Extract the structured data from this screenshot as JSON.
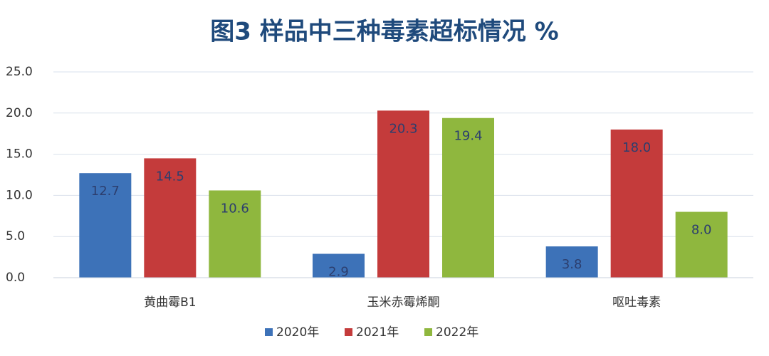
{
  "chart_data": {
    "type": "bar",
    "title": "图3 样品中三种毒素超标情况 %",
    "categories": [
      "黄曲霉B1",
      "玉米赤霉烯酮",
      "呕吐毒素"
    ],
    "series": [
      {
        "name": "2020年",
        "color": "#3d72b8",
        "values": [
          12.7,
          2.9,
          3.8
        ],
        "value_labels": [
          "12.7",
          "2.9",
          "3.8"
        ]
      },
      {
        "name": "2021年",
        "color": "#c43b3b",
        "values": [
          14.5,
          20.3,
          18.0
        ],
        "value_labels": [
          "14.5",
          "20.3",
          "18.0"
        ]
      },
      {
        "name": "2022年",
        "color": "#8fb73e",
        "values": [
          10.6,
          19.4,
          8.0
        ],
        "value_labels": [
          "10.6",
          "19.4",
          "8.0"
        ]
      }
    ],
    "ylim": [
      0,
      25
    ],
    "yticks": [
      {
        "value": 0,
        "label": "0.0"
      },
      {
        "value": 5,
        "label": "5.0"
      },
      {
        "value": 10,
        "label": "10.0"
      },
      {
        "value": 15,
        "label": "15.0"
      },
      {
        "value": 20,
        "label": "20.0"
      },
      {
        "value": 25,
        "label": "25.0"
      }
    ],
    "grid": true,
    "legend": "bottom"
  }
}
